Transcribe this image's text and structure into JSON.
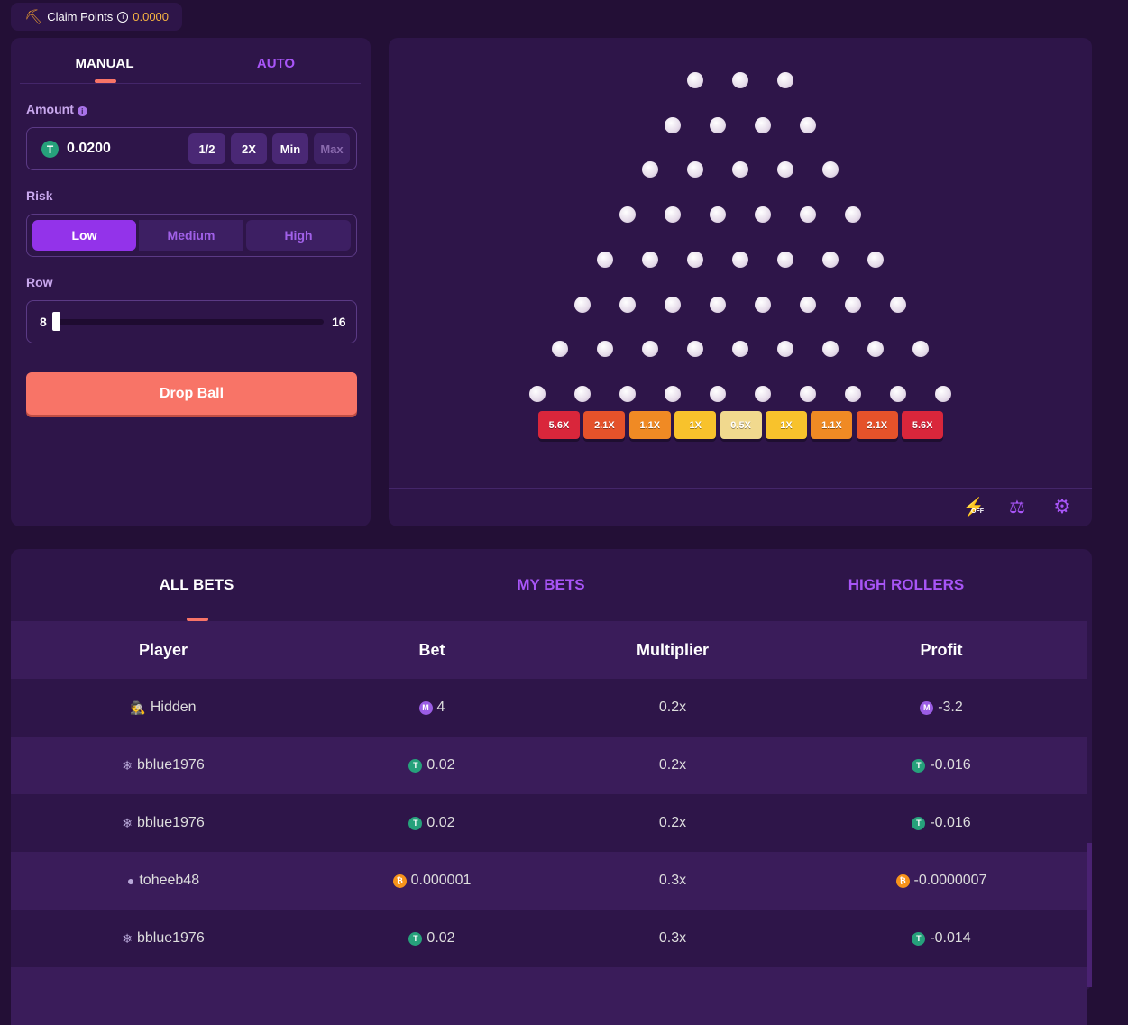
{
  "header": {
    "claim_label": "Claim Points",
    "points": "0.0000"
  },
  "controls": {
    "tabs": [
      "MANUAL",
      "AUTO"
    ],
    "amount_label": "Amount",
    "amount": "0.0200",
    "amount_buttons": [
      "1/2",
      "2X",
      "Min",
      "Max"
    ],
    "risk_label": "Risk",
    "risk_options": [
      "Low",
      "Medium",
      "High"
    ],
    "row_label": "Row",
    "row_min": "8",
    "row_max": "16",
    "drop_button": "Drop Ball"
  },
  "board": {
    "multipliers": [
      "5.6X",
      "2.1X",
      "1.1X",
      "1X",
      "0.5X",
      "1X",
      "1.1X",
      "2.1X",
      "5.6X"
    ],
    "turbo": "OFF"
  },
  "bets": {
    "tabs": [
      "ALL BETS",
      "MY BETS",
      "HIGH ROLLERS"
    ],
    "columns": [
      "Player",
      "Bet",
      "Multiplier",
      "Profit"
    ],
    "rows": [
      [
        "Hidden",
        "4",
        "0.2x",
        "-3.2"
      ],
      [
        "bblue1976",
        "0.02",
        "0.2x",
        "-0.016"
      ],
      [
        "bblue1976",
        "0.02",
        "0.2x",
        "-0.016"
      ],
      [
        "toheeb48",
        "0.000001",
        "0.3x",
        "-0.0000007"
      ],
      [
        "bblue1976",
        "0.02",
        "0.3x",
        "-0.014"
      ]
    ]
  }
}
